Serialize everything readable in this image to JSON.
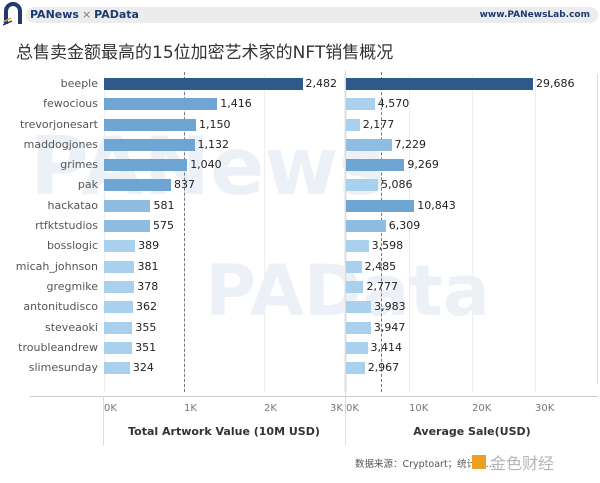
{
  "header": {
    "brand_left": "PANews",
    "brand_sep": "×",
    "brand_right": "PAData",
    "site": "www.PANewsLab.com"
  },
  "title": "总售卖金额最高的15位加密艺术家的NFT销售概况",
  "source": "数据来源：Cryptoart；统计时...",
  "watermark_bottom": "金色财经",
  "colors": {
    "dark": "#2d5a8a",
    "mid": "#6fa5d2",
    "light": "#a9d0ec",
    "lighter": "#bcdcf1"
  },
  "chart_data": [
    {
      "type": "bar",
      "orientation": "horizontal",
      "title": "Total Artwork Value (10M USD)",
      "xlabel": "Total Artwork Value (10M USD)",
      "categories": [
        "beeple",
        "fewocious",
        "trevorjonesart",
        "maddogjones",
        "grimes",
        "pak",
        "hackatao",
        "rtfktstudios",
        "bosslogic",
        "micah_johnson",
        "gregmike",
        "antonitudisco",
        "steveaoki",
        "troubleandrew",
        "slimesunday"
      ],
      "values": [
        2482,
        1416,
        1150,
        1132,
        1040,
        837,
        581,
        575,
        389,
        381,
        378,
        362,
        355,
        351,
        324
      ],
      "labels": [
        "2,482",
        "1,416",
        "1,150",
        "1,132",
        "1,040",
        "837",
        "581",
        "575",
        "389",
        "381",
        "378",
        "362",
        "355",
        "351",
        "324"
      ],
      "xlim": [
        0,
        3000
      ],
      "ticks": [
        "0K",
        "1K",
        "2K",
        "3K"
      ],
      "reference_line": 1000,
      "grid": true
    },
    {
      "type": "bar",
      "orientation": "horizontal",
      "title": "Average Sale(USD)",
      "xlabel": "Average Sale(USD)",
      "categories": [
        "beeple",
        "fewocious",
        "trevorjonesart",
        "maddogjones",
        "grimes",
        "pak",
        "hackatao",
        "rtfktstudios",
        "bosslogic",
        "micah_johnson",
        "gregmike",
        "antonitudisco",
        "steveaoki",
        "troubleandrew",
        "slimesunday"
      ],
      "values": [
        29686,
        4570,
        2177,
        7229,
        9269,
        5086,
        10843,
        6309,
        3598,
        2485,
        2777,
        3983,
        3947,
        3414,
        2967
      ],
      "labels": [
        "29,686",
        "4,570",
        "2,177",
        "7,229",
        "9,269",
        "5,086",
        "10,843",
        "6,309",
        "3,598",
        "2,485",
        "2,777",
        "3,983",
        "3,947",
        "3,414",
        "2,967"
      ],
      "xlim": [
        0,
        40000
      ],
      "ticks": [
        "0K",
        "10K",
        "20K",
        "30K"
      ],
      "reference_line": 5500,
      "grid": true
    }
  ]
}
